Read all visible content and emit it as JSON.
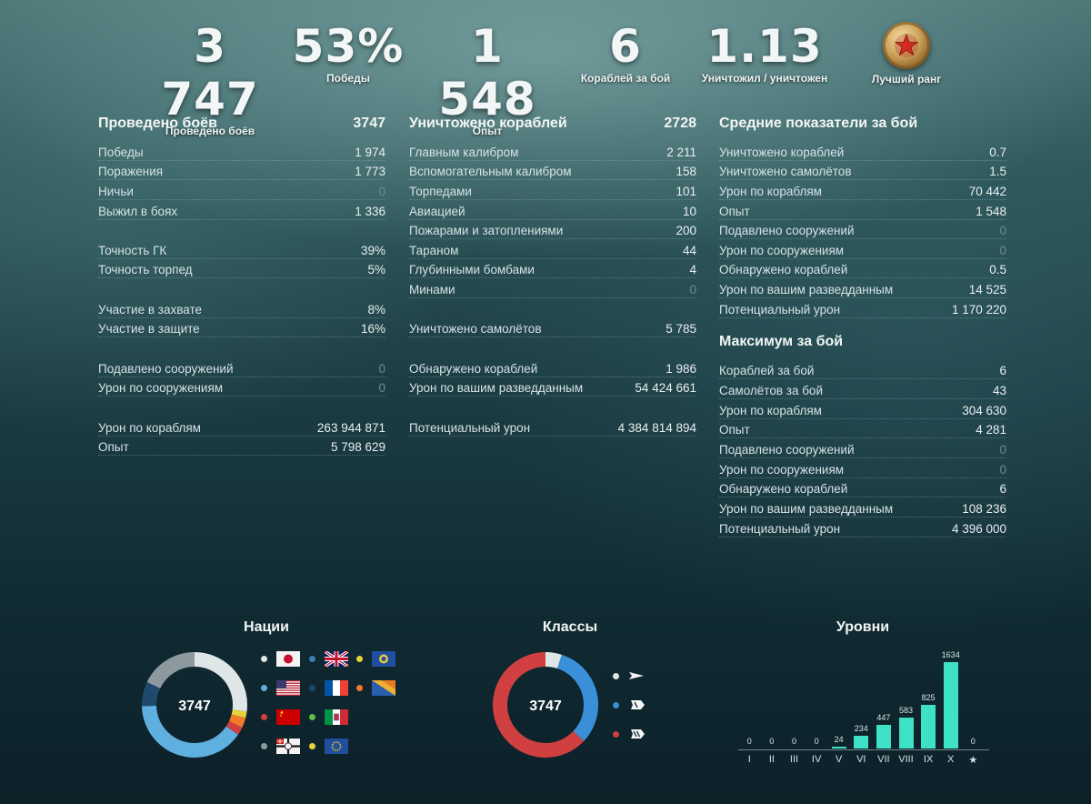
{
  "top_stats": [
    {
      "value": "3 747",
      "label": "Проведено боёв"
    },
    {
      "value": "53%",
      "label": "Победы"
    },
    {
      "value": "1 548",
      "label": "Опыт"
    },
    {
      "value": "6",
      "label": "Кораблей за бой"
    },
    {
      "value": "1.13",
      "label": "Уничтожил / уничтожен"
    }
  ],
  "best_rank": {
    "label": "Лучший ранг",
    "icon": "rank-star-medal-icon",
    "color": "#d4a85a"
  },
  "col1": {
    "title": "Проведено боёв",
    "total": "3747",
    "rows": [
      {
        "label": "Победы",
        "value": "1 974"
      },
      {
        "label": "Поражения",
        "value": "1 773"
      },
      {
        "label": "Ничьи",
        "value": "0"
      },
      {
        "label": "Выжил в боях",
        "value": "1 336"
      },
      {
        "label": "Точность ГК",
        "value": "39%"
      },
      {
        "label": "Точность торпед",
        "value": "5%"
      },
      {
        "label": "Участие в захвате",
        "value": "8%"
      },
      {
        "label": "Участие в защите",
        "value": "16%"
      },
      {
        "label": "Подавлено сооружений",
        "value": "0"
      },
      {
        "label": "Урон по сооружениям",
        "value": "0"
      },
      {
        "label": "Урон по кораблям",
        "value": "263 944 871"
      },
      {
        "label": "Опыт",
        "value": "5 798 629"
      }
    ]
  },
  "col2": {
    "title": "Уничтожено кораблей",
    "total": "2728",
    "rows": [
      {
        "label": "Главным калибром",
        "value": "2 211"
      },
      {
        "label": "Вспомогательным калибром",
        "value": "158"
      },
      {
        "label": "Торпедами",
        "value": "101"
      },
      {
        "label": "Авиацией",
        "value": "10"
      },
      {
        "label": "Пожарами и затоплениями",
        "value": "200"
      },
      {
        "label": "Тараном",
        "value": "44"
      },
      {
        "label": "Глубинными бомбами",
        "value": "4"
      },
      {
        "label": "Минами",
        "value": "0"
      },
      {
        "label": "Уничтожено самолётов",
        "value": "5 785"
      },
      {
        "label": "Обнаружено кораблей",
        "value": "1 986"
      },
      {
        "label": "Урон по вашим разведданным",
        "value": "54 424 661"
      },
      {
        "label": "Потенциальный урон",
        "value": "4 384 814 894"
      }
    ]
  },
  "col3": {
    "title": "Средние показатели за бой",
    "rows": [
      {
        "label": "Уничтожено кораблей",
        "value": "0.7"
      },
      {
        "label": "Уничтожено самолётов",
        "value": "1.5"
      },
      {
        "label": "Урон по кораблям",
        "value": "70 442"
      },
      {
        "label": "Опыт",
        "value": "1 548"
      },
      {
        "label": "Подавлено сооружений",
        "value": "0"
      },
      {
        "label": "Урон по сооружениям",
        "value": "0"
      },
      {
        "label": "Обнаружено кораблей",
        "value": "0.5"
      },
      {
        "label": "Урон по вашим разведданным",
        "value": "14 525"
      },
      {
        "label": "Потенциальный урон",
        "value": "1 170 220"
      }
    ],
    "max_title": "Максимум за бой",
    "max_rows": [
      {
        "label": "Кораблей за бой",
        "value": "6"
      },
      {
        "label": "Самолётов за бой",
        "value": "43"
      },
      {
        "label": "Урон по кораблям",
        "value": "304 630"
      },
      {
        "label": "Опыт",
        "value": "4 281"
      },
      {
        "label": "Подавлено сооружений",
        "value": "0"
      },
      {
        "label": "Урон по сооружениям",
        "value": "0"
      },
      {
        "label": "Обнаружено кораблей",
        "value": "6"
      },
      {
        "label": "Урон по вашим разведданным",
        "value": "108 236"
      },
      {
        "label": "Потенциальный урон",
        "value": "4 396 000"
      }
    ]
  },
  "nations": {
    "title": "Нации",
    "center": "3747",
    "legend": [
      {
        "flag": "japan-flag-icon",
        "dot": "#dfe6e8"
      },
      {
        "flag": "uk-flag-icon",
        "dot": "#3a7fb5"
      },
      {
        "flag": "commonwealth-flag-icon",
        "dot": "#e6d23a"
      },
      {
        "flag": "usa-flag-icon",
        "dot": "#5fb0e0"
      },
      {
        "flag": "france-flag-icon",
        "dot": "#1f4a6e"
      },
      {
        "flag": "pan-america-flag-icon",
        "dot": "#f07a2a"
      },
      {
        "flag": "ussr-flag-icon",
        "dot": "#d04040"
      },
      {
        "flag": "italy-flag-icon",
        "dot": "#5fbf4a"
      },
      {
        "flag": "germany-flag-icon",
        "dot": "#8c9aa0"
      },
      {
        "flag": "europe-flag-icon",
        "dot": "#e6d23a"
      }
    ],
    "segments": [
      {
        "name": "japan",
        "fraction": 0.27,
        "color": "#dfe6e8"
      },
      {
        "name": "commonwealth",
        "fraction": 0.02,
        "color": "#e6d23a"
      },
      {
        "name": "pan-america",
        "fraction": 0.03,
        "color": "#f07a2a"
      },
      {
        "name": "ussr",
        "fraction": 0.025,
        "color": "#d04040"
      },
      {
        "name": "usa",
        "fraction": 0.4,
        "color": "#5fb0e0"
      },
      {
        "name": "france",
        "fraction": 0.075,
        "color": "#1f4a6e"
      },
      {
        "name": "germany",
        "fraction": 0.18,
        "color": "#8c9aa0"
      }
    ]
  },
  "classes": {
    "title": "Классы",
    "center": "3747",
    "legend": [
      {
        "icon": "destroyer-class-icon",
        "dot": "#dfe6e8"
      },
      {
        "icon": "cruiser-class-icon",
        "dot": "#3a90d8"
      },
      {
        "icon": "battleship-class-icon",
        "dot": "#d04040"
      }
    ],
    "segments": [
      {
        "name": "destroyer",
        "fraction": 0.05,
        "color": "#dfe6e8"
      },
      {
        "name": "cruiser",
        "fraction": 0.32,
        "color": "#3a90d8"
      },
      {
        "name": "battleship",
        "fraction": 0.63,
        "color": "#d04040"
      }
    ]
  },
  "chart_data": {
    "type": "bar",
    "title": "Уровни",
    "categories": [
      "I",
      "II",
      "III",
      "IV",
      "V",
      "VI",
      "VII",
      "VIII",
      "IX",
      "X",
      "★"
    ],
    "values": [
      0,
      0,
      0,
      0,
      24,
      234,
      447,
      583,
      825,
      1634,
      0
    ],
    "value_labels": [
      "0",
      "0",
      "0",
      "0",
      "24",
      "234",
      "447",
      "583",
      "825",
      "1634",
      "0"
    ],
    "color": "#3ee0c6"
  }
}
